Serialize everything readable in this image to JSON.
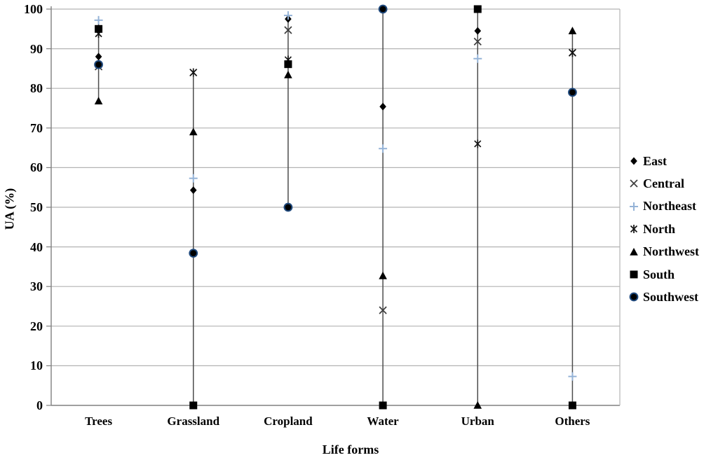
{
  "chart_data": {
    "type": "scatter",
    "title": "",
    "xlabel": "Life forms",
    "ylabel": "UA (%)",
    "ylim": [
      0,
      100
    ],
    "yticks": [
      0,
      10,
      20,
      30,
      40,
      50,
      60,
      70,
      80,
      90,
      100
    ],
    "categories": [
      "Trees",
      "Grassland",
      "Cropland",
      "Water",
      "Urban",
      "Others"
    ],
    "grid": "horizontal",
    "legend_position": "right",
    "hi_lo_lines": true,
    "series": [
      {
        "name": "East",
        "marker": "diamond",
        "color": "#000000",
        "values": [
          88,
          54.3,
          97.5,
          75.4,
          94.5,
          null
        ]
      },
      {
        "name": "Central",
        "marker": "x",
        "color": "#3d3d3d",
        "values": [
          85.5,
          84,
          94.7,
          24,
          91.8,
          89
        ]
      },
      {
        "name": "Northeast",
        "marker": "plus",
        "color": "#95b3d7",
        "values": [
          97.2,
          57.3,
          98.4,
          64.8,
          87.5,
          7.3
        ]
      },
      {
        "name": "North",
        "marker": "asterisk",
        "color": "#141414",
        "values": [
          93.8,
          84,
          87.2,
          null,
          66,
          89
        ]
      },
      {
        "name": "Northwest",
        "marker": "triangle",
        "color": "#000000",
        "values": [
          76.8,
          69,
          83.4,
          32.7,
          0,
          94.5
        ]
      },
      {
        "name": "South",
        "marker": "square",
        "color": "#000000",
        "values": [
          95,
          0,
          86.1,
          0,
          100,
          0
        ]
      },
      {
        "name": "Southwest",
        "marker": "circle",
        "color": "#000000",
        "marker_outline": "#1f497d",
        "values": [
          86,
          38.4,
          50,
          100,
          null,
          79
        ]
      }
    ],
    "colors": {
      "gridline": "#b3b3b3",
      "axis": "#808080",
      "hi_lo_line": "#4d4d4d",
      "text": "#000000",
      "background": "#ffffff"
    }
  }
}
